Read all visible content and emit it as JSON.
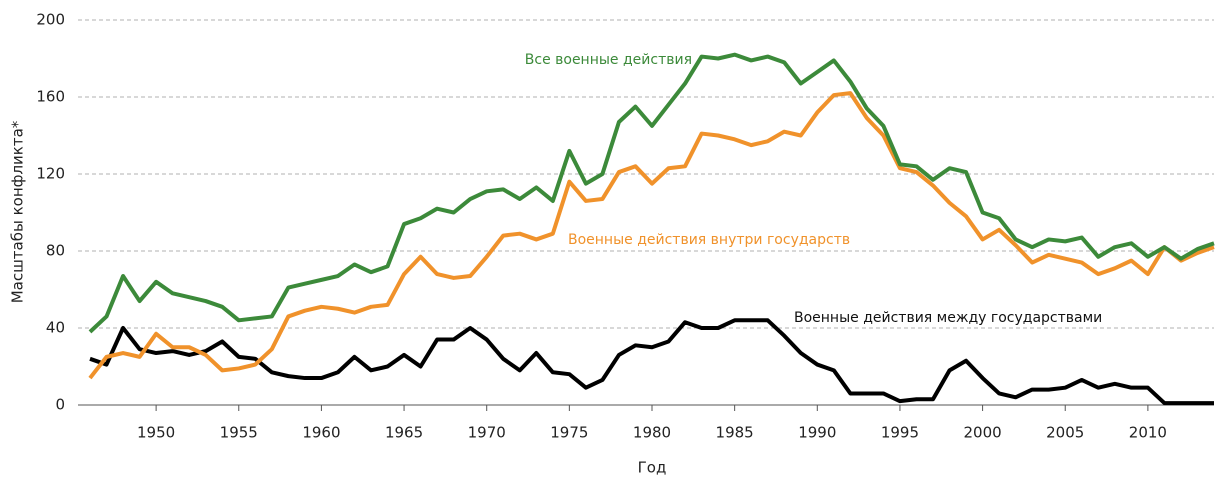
{
  "chart_data": {
    "type": "line",
    "xlabel": "Год",
    "ylabel": "Масштабы конфликта*",
    "x": [
      1946,
      1947,
      1948,
      1949,
      1950,
      1951,
      1952,
      1953,
      1954,
      1955,
      1956,
      1957,
      1958,
      1959,
      1960,
      1961,
      1962,
      1963,
      1964,
      1965,
      1966,
      1967,
      1968,
      1969,
      1970,
      1971,
      1972,
      1973,
      1974,
      1975,
      1976,
      1977,
      1978,
      1979,
      1980,
      1981,
      1982,
      1983,
      1984,
      1985,
      1986,
      1987,
      1988,
      1989,
      1990,
      1991,
      1992,
      1993,
      1994,
      1995,
      1996,
      1997,
      1998,
      1999,
      2000,
      2001,
      2002,
      2003,
      2004,
      2005,
      2006,
      2007,
      2008,
      2009,
      2010,
      2011,
      2012,
      2013,
      2014
    ],
    "series": [
      {
        "name": "Все военные действия",
        "color": "#3c8a3a",
        "values": [
          38,
          46,
          67,
          54,
          64,
          58,
          56,
          54,
          51,
          44,
          45,
          46,
          61,
          63,
          65,
          67,
          73,
          69,
          72,
          94,
          97,
          102,
          100,
          107,
          111,
          112,
          107,
          113,
          106,
          132,
          115,
          120,
          147,
          155,
          145,
          156,
          167,
          181,
          180,
          182,
          179,
          181,
          178,
          167,
          173,
          179,
          168,
          154,
          145,
          125,
          124,
          117,
          123,
          121,
          100,
          97,
          86,
          82,
          86,
          85,
          87,
          77,
          82,
          84,
          77,
          82,
          76,
          81,
          84
        ]
      },
      {
        "name": "Военные действия внутри государств",
        "color": "#f0922b",
        "values": [
          14,
          25,
          27,
          25,
          37,
          30,
          30,
          26,
          18,
          19,
          21,
          29,
          46,
          49,
          51,
          50,
          48,
          51,
          52,
          68,
          77,
          68,
          66,
          67,
          77,
          88,
          89,
          86,
          89,
          116,
          106,
          107,
          121,
          124,
          115,
          123,
          124,
          141,
          140,
          138,
          135,
          137,
          142,
          140,
          152,
          161,
          162,
          149,
          140,
          123,
          121,
          114,
          105,
          98,
          86,
          91,
          83,
          74,
          78,
          76,
          74,
          68,
          71,
          75,
          68,
          82,
          75,
          79,
          82
        ]
      },
      {
        "name": "Военные действия между государствами",
        "color": "#000000",
        "values": [
          24,
          21,
          40,
          29,
          27,
          28,
          26,
          28,
          33,
          25,
          24,
          17,
          15,
          14,
          14,
          17,
          25,
          18,
          20,
          26,
          20,
          34,
          34,
          40,
          34,
          24,
          18,
          27,
          17,
          16,
          9,
          13,
          26,
          31,
          30,
          33,
          43,
          40,
          40,
          44,
          44,
          44,
          36,
          27,
          21,
          18,
          6,
          6,
          6,
          2,
          3,
          3,
          18,
          23,
          14,
          6,
          4,
          8,
          8,
          9,
          13,
          9,
          11,
          9,
          9,
          1,
          1,
          1,
          1
        ]
      }
    ],
    "xlim": [
      1946,
      2014
    ],
    "ylim": [
      0,
      200
    ],
    "xticks": [
      1950,
      1955,
      1960,
      1965,
      1970,
      1975,
      1980,
      1985,
      1990,
      1995,
      2000,
      2005,
      2010
    ],
    "yticks": [
      0,
      40,
      80,
      120,
      160,
      200
    ],
    "grid": true
  }
}
